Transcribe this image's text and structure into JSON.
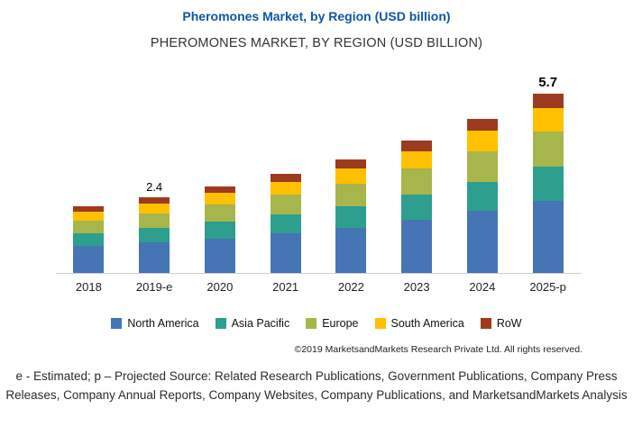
{
  "header": {
    "title": "Pheromones Market, by Region (USD billion)",
    "subtitle": "PHEROMONES MARKET, BY REGION (USD BILLION)",
    "title_color": "#1155a5"
  },
  "chart_data": {
    "type": "bar",
    "stacked": true,
    "title": "PHEROMONES MARKET, BY REGION (USD BILLION)",
    "xlabel": "",
    "ylabel": "USD billion",
    "ylim": [
      0,
      6.0
    ],
    "grid": false,
    "legend_position": "bottom",
    "categories": [
      "2018",
      "2019-e",
      "2020",
      "2021",
      "2022",
      "2023",
      "2024",
      "2025-p"
    ],
    "series": [
      {
        "name": "North America",
        "color": "#4575b5",
        "values": [
          0.85,
          0.96,
          1.1,
          1.26,
          1.44,
          1.68,
          1.96,
          2.28
        ]
      },
      {
        "name": "Asia Pacific",
        "color": "#2e9e8e",
        "values": [
          0.4,
          0.46,
          0.52,
          0.6,
          0.68,
          0.8,
          0.93,
          1.08
        ]
      },
      {
        "name": "Europe",
        "color": "#a6b54c",
        "values": [
          0.41,
          0.48,
          0.55,
          0.63,
          0.72,
          0.84,
          0.98,
          1.14
        ]
      },
      {
        "name": "South America",
        "color": "#ffc000",
        "values": [
          0.27,
          0.31,
          0.36,
          0.41,
          0.47,
          0.55,
          0.64,
          0.74
        ]
      },
      {
        "name": "RoW",
        "color": "#9e3a20",
        "values": [
          0.17,
          0.19,
          0.22,
          0.25,
          0.29,
          0.33,
          0.39,
          0.46
        ]
      }
    ],
    "annotations": [
      {
        "category": "2019-e",
        "text": "2.4",
        "emphasis": false
      },
      {
        "category": "2025-p",
        "text": "5.7",
        "emphasis": true
      }
    ],
    "totals": {
      "2019-e": 2.4,
      "2025-p": 5.7
    }
  },
  "footer": {
    "copyright": "©2019 MarketsandMarkets  Research Private Ltd. All rights reserved.",
    "note": "e - Estimated; p – Projected Source: Related Research Publications, Government Publications, Company Press Releases, Company Annual Reports, Company Websites, Company Publications, and MarketsandMarkets Analysis"
  }
}
